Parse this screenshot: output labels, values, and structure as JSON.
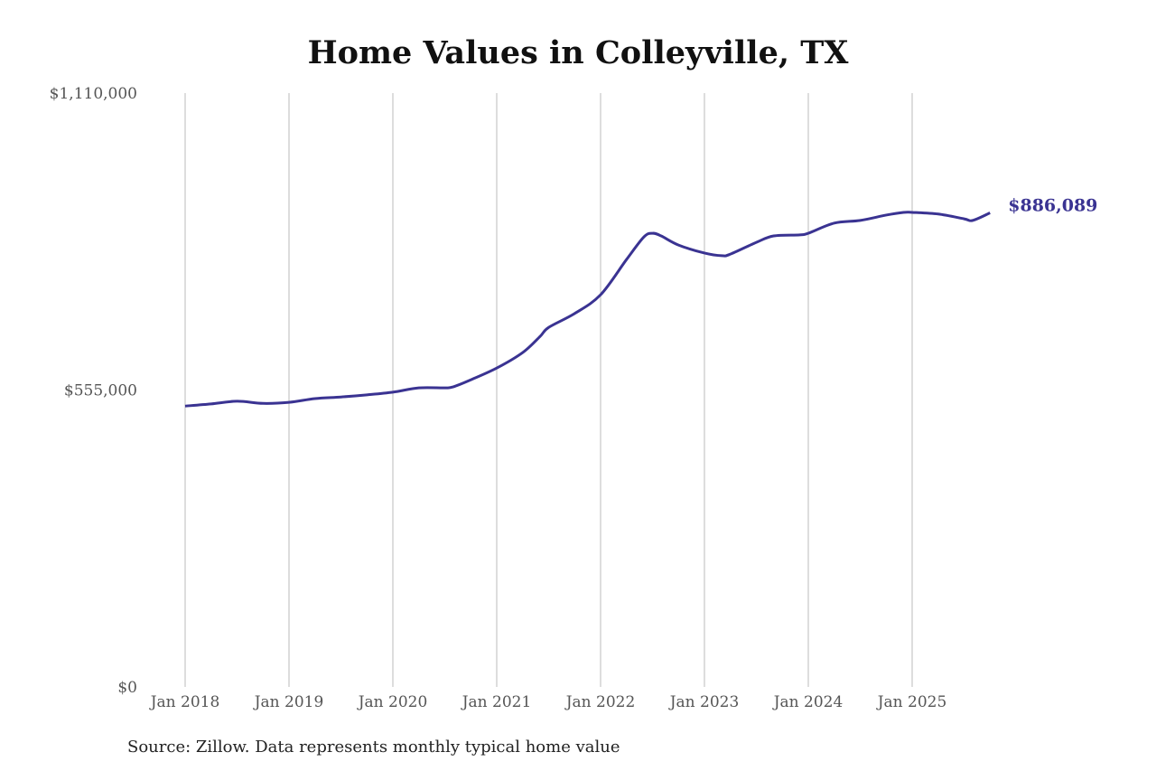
{
  "chart_data": {
    "type": "line",
    "title": "Home Values in Colleyville, TX",
    "xlabel": "",
    "ylabel": "",
    "ylim": [
      0,
      1110000
    ],
    "yticks": [
      0,
      555000,
      1110000
    ],
    "ytick_labels": [
      "$0",
      "$555,000",
      "$1,110,000"
    ],
    "xticks": [
      "2018-01",
      "2019-01",
      "2020-01",
      "2021-01",
      "2022-01",
      "2023-01",
      "2024-01",
      "2025-01"
    ],
    "xtick_labels": [
      "Jan 2018",
      "Jan 2019",
      "Jan 2020",
      "Jan 2021",
      "Jan 2022",
      "Jan 2023",
      "Jan 2024",
      "Jan 2025"
    ],
    "grid": "vertical",
    "color": "#3a3392",
    "end_label": "$886,089",
    "series": [
      {
        "x": [
          "2018-01",
          "2018-04",
          "2018-07",
          "2018-10",
          "2019-01",
          "2019-04",
          "2019-07",
          "2019-10",
          "2020-01",
          "2020-04",
          "2020-07",
          "2020-08",
          "2020-10",
          "2021-01",
          "2021-04",
          "2021-06",
          "2021-07",
          "2021-10",
          "2022-01",
          "2022-04",
          "2022-06",
          "2022-07",
          "2022-08",
          "2022-10",
          "2023-01",
          "2023-03",
          "2023-04",
          "2023-07",
          "2023-09",
          "2023-12",
          "2024-01",
          "2024-04",
          "2024-07",
          "2024-10",
          "2024-12",
          "2025-01",
          "2025-04",
          "2025-07",
          "2025-08",
          "2025-10"
        ],
        "values": [
          525000,
          529000,
          534000,
          530000,
          532000,
          539000,
          542000,
          546000,
          551000,
          559000,
          559000,
          561000,
          574000,
          596000,
          625000,
          655000,
          672000,
          698000,
          733000,
          799000,
          841000,
          848000,
          843000,
          826000,
          811000,
          806000,
          809000,
          831000,
          843000,
          845000,
          848000,
          867000,
          872000,
          882000,
          887000,
          887000,
          884000,
          875000,
          872000,
          886089
        ]
      }
    ]
  },
  "source": "Source: Zillow. Data represents monthly typical home value"
}
